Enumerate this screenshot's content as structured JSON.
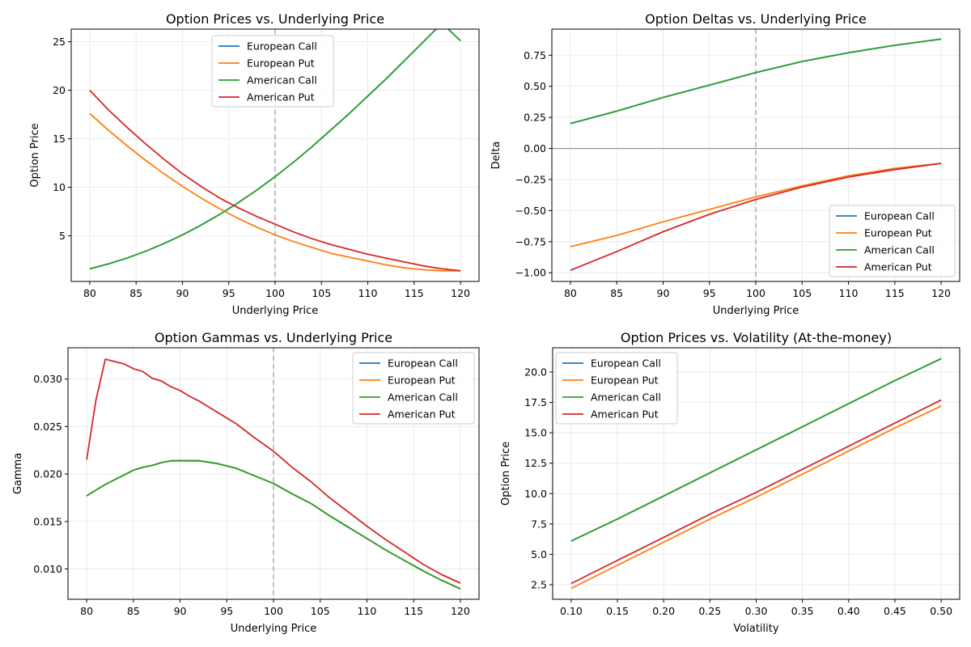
{
  "colors": {
    "european_call": "#1f77b4",
    "european_put": "#ff7f0e",
    "american_call": "#2ca02c",
    "american_put": "#d62728",
    "grid": "#e5e5e5",
    "reference_line": "#b0b0b0"
  },
  "chart_data": [
    {
      "type": "line",
      "title": "Option Prices vs. Underlying Price",
      "xlabel": "Underlying Price",
      "ylabel": "Option Price",
      "xlim": [
        78,
        122
      ],
      "ylim": [
        0.3,
        26.3
      ],
      "xticks": [
        80,
        85,
        90,
        95,
        100,
        105,
        110,
        115,
        120
      ],
      "xtick_labels": [
        "80",
        "85",
        "90",
        "95",
        "100",
        "105",
        "110",
        "115",
        "120"
      ],
      "yticks": [
        5,
        10,
        15,
        20,
        25
      ],
      "ytick_labels": [
        "5",
        "10",
        "15",
        "20",
        "25"
      ],
      "grid": true,
      "legend": "upper center",
      "vline": 100,
      "x": [
        80,
        82,
        84,
        86,
        88,
        90,
        92,
        94,
        96,
        98,
        100,
        102,
        104,
        106,
        108,
        110,
        112,
        114,
        116,
        118,
        120
      ],
      "series": [
        {
          "name": "European Call",
          "color_key": "european_call",
          "values": [
            1.6,
            2.1,
            2.7,
            3.4,
            4.2,
            5.1,
            6.1,
            7.2,
            8.4,
            9.7,
            11.1,
            12.6,
            14.2,
            15.9,
            17.6,
            19.4,
            21.2,
            23.1,
            25.0,
            26.9,
            25.1
          ]
        },
        {
          "name": "European Put",
          "color_key": "european_put",
          "values": [
            17.6,
            15.9,
            14.3,
            12.8,
            11.4,
            10.1,
            8.9,
            7.8,
            6.8,
            5.9,
            5.1,
            4.4,
            3.8,
            3.2,
            2.8,
            2.4,
            2.0,
            1.7,
            1.5,
            1.4,
            1.4
          ]
        },
        {
          "name": "American Call",
          "color_key": "american_call",
          "values": [
            1.6,
            2.1,
            2.7,
            3.4,
            4.2,
            5.1,
            6.1,
            7.2,
            8.4,
            9.7,
            11.1,
            12.6,
            14.2,
            15.9,
            17.6,
            19.4,
            21.2,
            23.1,
            25.0,
            26.9,
            25.1
          ]
        },
        {
          "name": "American Put",
          "color_key": "american_put",
          "values": [
            20.0,
            18.0,
            16.2,
            14.5,
            12.9,
            11.4,
            10.1,
            8.9,
            7.9,
            7.0,
            6.2,
            5.4,
            4.7,
            4.1,
            3.6,
            3.1,
            2.7,
            2.3,
            1.9,
            1.6,
            1.4
          ]
        }
      ]
    },
    {
      "type": "line",
      "title": "Option Deltas vs. Underlying Price",
      "xlabel": "Underlying Price",
      "ylabel": "Delta",
      "xlim": [
        78,
        122
      ],
      "ylim": [
        -1.07,
        0.96
      ],
      "xticks": [
        80,
        85,
        90,
        95,
        100,
        105,
        110,
        115,
        120
      ],
      "xtick_labels": [
        "80",
        "85",
        "90",
        "95",
        "100",
        "105",
        "110",
        "115",
        "120"
      ],
      "yticks": [
        -1.0,
        -0.75,
        -0.5,
        -0.25,
        0.0,
        0.25,
        0.5,
        0.75
      ],
      "ytick_labels": [
        "−1.00",
        "−0.75",
        "−0.50",
        "−0.25",
        "0.00",
        "0.25",
        "0.50",
        "0.75"
      ],
      "grid": true,
      "legend": "lower right",
      "vline": 100,
      "hline": 0,
      "x": [
        80,
        85,
        90,
        95,
        100,
        105,
        110,
        115,
        120
      ],
      "series": [
        {
          "name": "European Call",
          "color_key": "european_call",
          "values": [
            0.2,
            0.3,
            0.41,
            0.51,
            0.61,
            0.7,
            0.77,
            0.83,
            0.88
          ]
        },
        {
          "name": "European Put",
          "color_key": "european_put",
          "values": [
            -0.79,
            -0.7,
            -0.59,
            -0.49,
            -0.39,
            -0.3,
            -0.22,
            -0.16,
            -0.12
          ]
        },
        {
          "name": "American Call",
          "color_key": "american_call",
          "values": [
            0.2,
            0.3,
            0.41,
            0.51,
            0.61,
            0.7,
            0.77,
            0.83,
            0.88
          ]
        },
        {
          "name": "American Put",
          "color_key": "american_put",
          "values": [
            -0.98,
            -0.83,
            -0.67,
            -0.53,
            -0.41,
            -0.31,
            -0.23,
            -0.17,
            -0.12
          ]
        }
      ]
    },
    {
      "type": "line",
      "title": "Option Gammas vs. Underlying Price",
      "xlabel": "Underlying Price",
      "ylabel": "Gamma",
      "xlim": [
        78,
        122
      ],
      "ylim": [
        0.0068,
        0.0333
      ],
      "xticks": [
        80,
        85,
        90,
        95,
        100,
        105,
        110,
        115,
        120
      ],
      "xtick_labels": [
        "80",
        "85",
        "90",
        "95",
        "100",
        "105",
        "110",
        "115",
        "120"
      ],
      "yticks": [
        0.01,
        0.015,
        0.02,
        0.025,
        0.03
      ],
      "ytick_labels": [
        "0.010",
        "0.015",
        "0.020",
        "0.025",
        "0.030"
      ],
      "grid": true,
      "legend": "upper right",
      "vline": 100,
      "x": [
        80,
        81,
        82,
        84,
        85,
        86,
        87,
        88,
        89,
        90,
        91,
        92,
        94,
        96,
        98,
        100,
        102,
        104,
        106,
        108,
        110,
        112,
        114,
        116,
        118,
        120
      ],
      "series": [
        {
          "name": "European Call",
          "color_key": "european_call",
          "values": [
            0.0177,
            0.0183,
            0.0189,
            0.0199,
            0.0204,
            0.0207,
            0.0209,
            0.0212,
            0.0214,
            0.0214,
            0.0214,
            0.0214,
            0.0211,
            0.0206,
            0.0198,
            0.019,
            0.0179,
            0.0169,
            0.0156,
            0.0144,
            0.0132,
            0.012,
            0.0109,
            0.0098,
            0.0088,
            0.0079
          ]
        },
        {
          "name": "European Put",
          "color_key": "european_put",
          "values": [
            0.0177,
            0.0183,
            0.0189,
            0.0199,
            0.0204,
            0.0207,
            0.0209,
            0.0212,
            0.0214,
            0.0214,
            0.0214,
            0.0214,
            0.0211,
            0.0206,
            0.0198,
            0.019,
            0.0179,
            0.0169,
            0.0156,
            0.0144,
            0.0132,
            0.012,
            0.0109,
            0.0098,
            0.0088,
            0.0079
          ]
        },
        {
          "name": "American Call",
          "color_key": "american_call",
          "values": [
            0.0177,
            0.0183,
            0.0189,
            0.0199,
            0.0204,
            0.0207,
            0.0209,
            0.0212,
            0.0214,
            0.0214,
            0.0214,
            0.0214,
            0.0211,
            0.0206,
            0.0198,
            0.019,
            0.0179,
            0.0169,
            0.0156,
            0.0144,
            0.0132,
            0.012,
            0.0109,
            0.0098,
            0.0088,
            0.0079
          ]
        },
        {
          "name": "American Put",
          "color_key": "american_put",
          "values": [
            0.0215,
            0.0278,
            0.0321,
            0.0316,
            0.0311,
            0.0308,
            0.0301,
            0.0298,
            0.0292,
            0.0288,
            0.0282,
            0.0277,
            0.0265,
            0.0253,
            0.0238,
            0.0224,
            0.0207,
            0.0192,
            0.0175,
            0.016,
            0.0145,
            0.0131,
            0.0118,
            0.0105,
            0.0094,
            0.0085
          ]
        }
      ]
    },
    {
      "type": "line",
      "title": "Option Prices vs. Volatility (At-the-money)",
      "xlabel": "Volatility",
      "ylabel": "Option Price",
      "xlim": [
        0.08,
        0.52
      ],
      "ylim": [
        1.3,
        22.0
      ],
      "xticks": [
        0.1,
        0.15,
        0.2,
        0.25,
        0.3,
        0.35,
        0.4,
        0.45,
        0.5
      ],
      "xtick_labels": [
        "0.10",
        "0.15",
        "0.20",
        "0.25",
        "0.30",
        "0.35",
        "0.40",
        "0.45",
        "0.50"
      ],
      "yticks": [
        2.5,
        5.0,
        7.5,
        10.0,
        12.5,
        15.0,
        17.5,
        20.0
      ],
      "ytick_labels": [
        "2.5",
        "5.0",
        "7.5",
        "10.0",
        "12.5",
        "15.0",
        "17.5",
        "20.0"
      ],
      "grid": true,
      "legend": "upper left",
      "x": [
        0.1,
        0.15,
        0.2,
        0.25,
        0.3,
        0.35,
        0.4,
        0.45,
        0.5
      ],
      "series": [
        {
          "name": "European Call",
          "color_key": "european_call",
          "values": [
            6.1,
            7.9,
            9.8,
            11.7,
            13.6,
            15.5,
            17.4,
            19.3,
            21.1
          ]
        },
        {
          "name": "European Put",
          "color_key": "european_put",
          "values": [
            2.2,
            4.1,
            6.0,
            7.9,
            9.7,
            11.6,
            13.5,
            15.4,
            17.2
          ]
        },
        {
          "name": "American Call",
          "color_key": "american_call",
          "values": [
            6.1,
            7.9,
            9.8,
            11.7,
            13.6,
            15.5,
            17.4,
            19.3,
            21.1
          ]
        },
        {
          "name": "American Put",
          "color_key": "american_put",
          "values": [
            2.6,
            4.5,
            6.4,
            8.3,
            10.1,
            12.0,
            13.9,
            15.8,
            17.7
          ]
        }
      ]
    }
  ]
}
